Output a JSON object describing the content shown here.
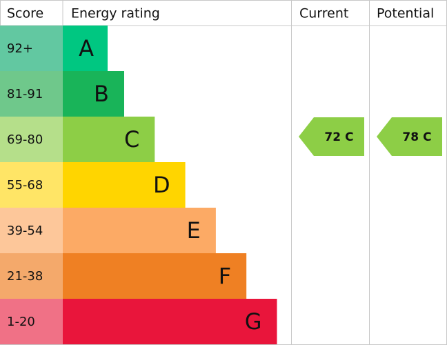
{
  "header": {
    "score": "Score",
    "rating": "Energy rating",
    "current": "Current",
    "potential": "Potential"
  },
  "bands": [
    {
      "score": "92+",
      "letter": "A",
      "color": "#00c781",
      "score_color": "#62c8a1"
    },
    {
      "score": "81-91",
      "letter": "B",
      "color": "#19b459",
      "score_color": "#6fc88b"
    },
    {
      "score": "69-80",
      "letter": "C",
      "color": "#8dce46",
      "score_color": "#b5df8a"
    },
    {
      "score": "55-68",
      "letter": "D",
      "color": "#ffd500",
      "score_color": "#ffe566"
    },
    {
      "score": "39-54",
      "letter": "E",
      "color": "#fcaa65",
      "score_color": "#fdc79a"
    },
    {
      "score": "21-38",
      "letter": "F",
      "color": "#ef8023",
      "score_color": "#f4a96b"
    },
    {
      "score": "1-20",
      "letter": "G",
      "color": "#e9153b",
      "score_color": "#f07186"
    }
  ],
  "current": {
    "score": 72,
    "rating": "C"
  },
  "potential": {
    "score": 78,
    "rating": "C"
  }
}
